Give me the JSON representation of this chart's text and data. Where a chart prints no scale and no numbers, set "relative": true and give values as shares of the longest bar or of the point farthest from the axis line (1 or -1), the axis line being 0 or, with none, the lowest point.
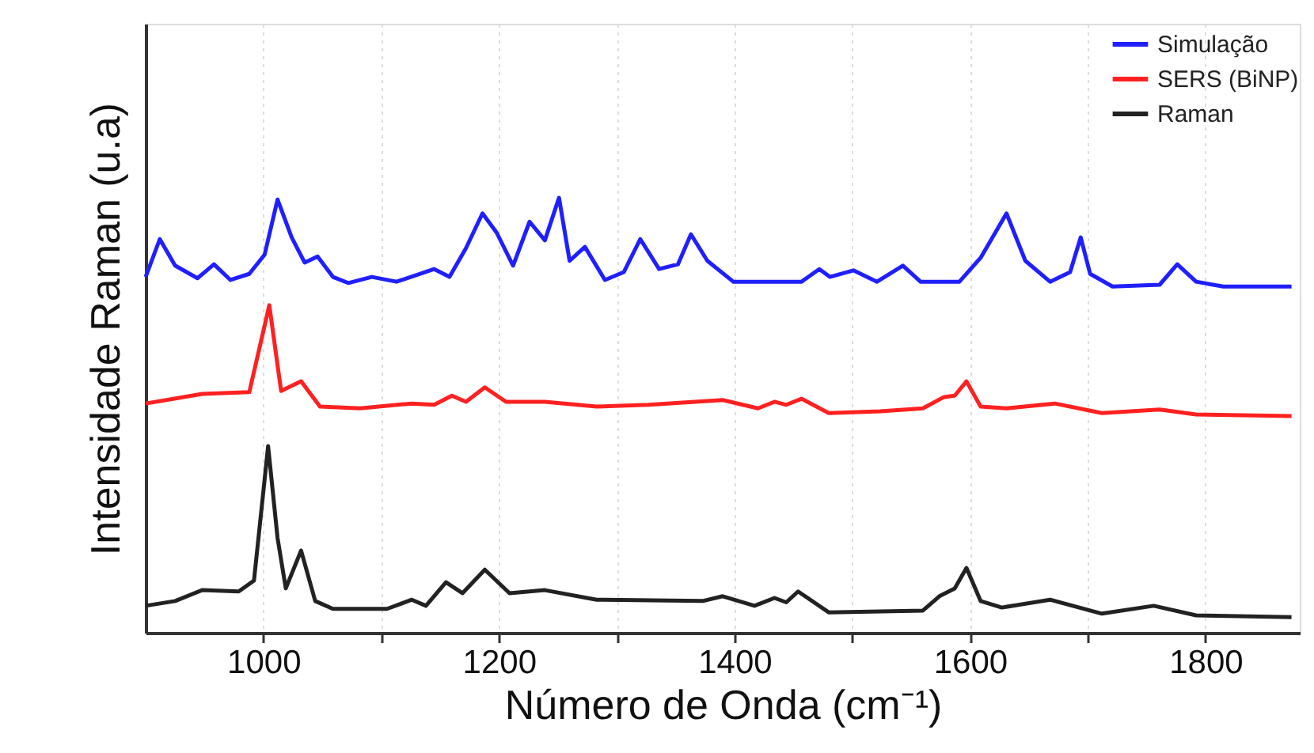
{
  "chart_data": {
    "type": "line",
    "relative": true,
    "xlabel": "Número de Onda (cm⁻¹)",
    "ylabel": "Intensidade Raman (u.a)",
    "xlim": [
      900,
      1880
    ],
    "xticks": [
      1000,
      {
        "value": 1100,
        "label": null
      },
      1200,
      {
        "value": 1300,
        "label": null
      },
      1400,
      {
        "value": 1500,
        "label": null
      },
      1600,
      {
        "value": 1700,
        "label": null
      },
      1800
    ],
    "grid": "x",
    "legend": "top right",
    "marker": "none",
    "line_style": "solid",
    "series": [
      {
        "name": "Simulação",
        "color": "#1f1fff",
        "x": [
          900,
          912,
          925,
          944,
          958,
          972,
          988,
          1001,
          1012,
          1024,
          1035,
          1046,
          1059,
          1072,
          1092,
          1113,
          1145,
          1158,
          1172,
          1186,
          1198,
          1212,
          1226,
          1239,
          1251,
          1260,
          1273,
          1290,
          1306,
          1320,
          1336,
          1352,
          1363,
          1377,
          1399,
          1417,
          1457,
          1472,
          1481,
          1501,
          1521,
          1543,
          1558,
          1591,
          1609,
          1631,
          1647,
          1668,
          1685,
          1694,
          1702,
          1721,
          1761,
          1776,
          1792,
          1815,
          1873
        ],
        "values": [
          0.818,
          0.905,
          0.844,
          0.815,
          0.847,
          0.811,
          0.825,
          0.869,
          0.996,
          0.909,
          0.851,
          0.865,
          0.818,
          0.804,
          0.818,
          0.807,
          0.836,
          0.818,
          0.884,
          0.964,
          0.92,
          0.844,
          0.945,
          0.902,
          1.0,
          0.855,
          0.887,
          0.811,
          0.829,
          0.905,
          0.836,
          0.847,
          0.916,
          0.855,
          0.807,
          0.807,
          0.807,
          0.836,
          0.818,
          0.833,
          0.807,
          0.844,
          0.807,
          0.807,
          0.862,
          0.964,
          0.855,
          0.807,
          0.829,
          0.909,
          0.825,
          0.796,
          0.8,
          0.847,
          0.807,
          0.796,
          0.796
        ]
      },
      {
        "name": "SERS (BiNP)",
        "color": "#ff2020",
        "x": [
          900,
          948,
          988,
          1005,
          1015,
          1032,
          1048,
          1082,
          1126,
          1145,
          1160,
          1172,
          1188,
          1206,
          1239,
          1283,
          1327,
          1390,
          1420,
          1434,
          1444,
          1457,
          1480,
          1524,
          1560,
          1578,
          1587,
          1597,
          1609,
          1631,
          1672,
          1712,
          1761,
          1792,
          1873
        ],
        "values": [
          0.527,
          0.549,
          0.553,
          0.753,
          0.556,
          0.578,
          0.52,
          0.516,
          0.527,
          0.524,
          0.545,
          0.531,
          0.564,
          0.531,
          0.531,
          0.52,
          0.524,
          0.535,
          0.516,
          0.531,
          0.524,
          0.538,
          0.505,
          0.509,
          0.516,
          0.542,
          0.545,
          0.578,
          0.52,
          0.516,
          0.527,
          0.505,
          0.513,
          0.502,
          0.498
        ]
      },
      {
        "name": "Raman",
        "color": "#222222",
        "x": [
          900,
          925,
          948,
          979,
          992,
          1004,
          1012,
          1019,
          1032,
          1044,
          1059,
          1105,
          1126,
          1138,
          1155,
          1169,
          1188,
          1209,
          1239,
          1283,
          1373,
          1390,
          1417,
          1434,
          1444,
          1454,
          1480,
          1560,
          1574,
          1587,
          1597,
          1609,
          1627,
          1668,
          1712,
          1756,
          1792,
          1873
        ],
        "values": [
          0.062,
          0.073,
          0.098,
          0.095,
          0.12,
          0.429,
          0.218,
          0.102,
          0.189,
          0.073,
          0.055,
          0.055,
          0.076,
          0.062,
          0.116,
          0.091,
          0.145,
          0.091,
          0.098,
          0.076,
          0.073,
          0.084,
          0.062,
          0.08,
          0.07,
          0.095,
          0.047,
          0.051,
          0.084,
          0.102,
          0.149,
          0.073,
          0.058,
          0.076,
          0.044,
          0.062,
          0.04,
          0.036
        ]
      }
    ]
  }
}
